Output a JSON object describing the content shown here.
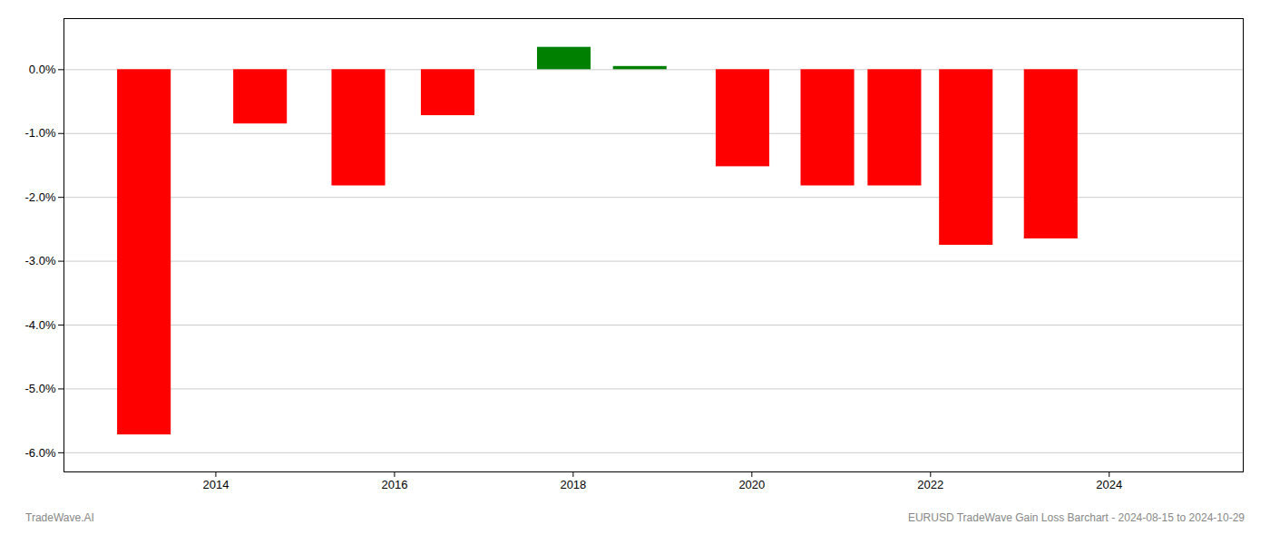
{
  "chart_data": {
    "type": "bar",
    "x": [
      2013.2,
      2014.5,
      2015.6,
      2016.6,
      2017.9,
      2018.75,
      2019.9,
      2020.85,
      2021.6,
      2022.4,
      2023.35
    ],
    "values": [
      -5.72,
      -0.85,
      -1.82,
      -0.72,
      0.35,
      0.05,
      -1.52,
      -1.82,
      -1.82,
      -2.75,
      -2.65
    ],
    "colors": [
      "#ff0000",
      "#ff0000",
      "#ff0000",
      "#ff0000",
      "#008000",
      "#008000",
      "#ff0000",
      "#ff0000",
      "#ff0000",
      "#ff0000",
      "#ff0000"
    ],
    "xlim": [
      2012.3,
      2025.5
    ],
    "xticks": [
      2014,
      2016,
      2018,
      2020,
      2022,
      2024
    ],
    "ylim": [
      -6.3,
      0.8
    ],
    "yticks": [
      {
        "value": 0.0,
        "label": "0.0%"
      },
      {
        "value": -1.0,
        "label": "-1.0%"
      },
      {
        "value": -2.0,
        "label": "-2.0%"
      },
      {
        "value": -3.0,
        "label": "-3.0%"
      },
      {
        "value": -4.0,
        "label": "-4.0%"
      },
      {
        "value": -5.0,
        "label": "-5.0%"
      },
      {
        "value": -6.0,
        "label": "-6.0%"
      }
    ],
    "grid": true,
    "annotations": [
      "TradeWave.AI",
      "EURUSD TradeWave Gain Loss Barchart - 2024-08-15 to 2024-10-29"
    ]
  }
}
